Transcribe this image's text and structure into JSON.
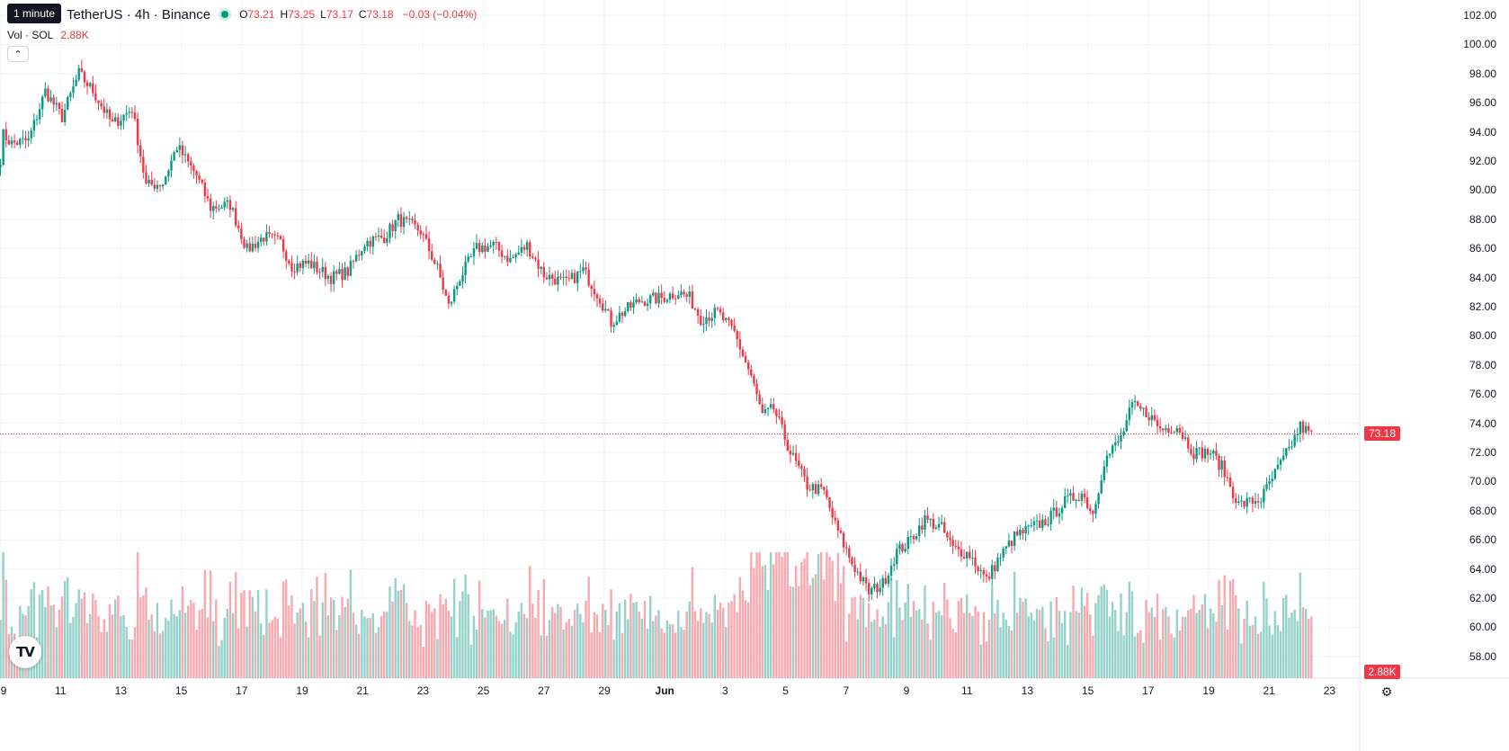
{
  "legend": {
    "tooltip": "1 minute",
    "symbol": "TetherUS · 4h · Binance",
    "open_key": "O",
    "open": "73.21",
    "high_key": "H",
    "high": "73.25",
    "low_key": "L",
    "low": "73.17",
    "close_key": "C",
    "close": "73.18",
    "change": "−0.03 (−0.04%)"
  },
  "volume": {
    "label": "Vol · SOL",
    "value": "2.88K"
  },
  "collapse_icon": "chevron-up-icon",
  "logo": "TV",
  "last_price_tag": "73.18",
  "last_volume_tag": "2.88K",
  "colors": {
    "up": "#089981",
    "down": "#f23645",
    "up_vol": "#94d1c8",
    "down_vol": "#f7a9af",
    "grid": "#f0f3fa"
  },
  "chart_data": {
    "type": "candlestick",
    "price_axis": {
      "ticks": [
        "102.00",
        "100.00",
        "98.00",
        "96.00",
        "94.00",
        "92.00",
        "90.00",
        "88.00",
        "86.00",
        "84.00",
        "82.00",
        "80.00",
        "78.00",
        "76.00",
        "74.00",
        "72.00",
        "70.00",
        "68.00",
        "66.00",
        "64.00",
        "62.00",
        "60.00",
        "58.00"
      ],
      "range": [
        56.3,
        103
      ]
    },
    "time_axis": {
      "ticks": [
        "9",
        "11",
        "13",
        "15",
        "17",
        "19",
        "21",
        "23",
        "25",
        "27",
        "29",
        "Jun",
        "3",
        "5",
        "7",
        "9",
        "11",
        "13",
        "15",
        "17",
        "19",
        "21",
        "23"
      ]
    },
    "price_anchors": [
      [
        0,
        92.2
      ],
      [
        1,
        93.8
      ],
      [
        4,
        93.2
      ],
      [
        10,
        93.4
      ],
      [
        16,
        96.8
      ],
      [
        22,
        95.0
      ],
      [
        28,
        98.0
      ],
      [
        33,
        96.8
      ],
      [
        40,
        94.5
      ],
      [
        47,
        95.6
      ],
      [
        52,
        90.3
      ],
      [
        58,
        90.5
      ],
      [
        63,
        93.0
      ],
      [
        70,
        91.0
      ],
      [
        75,
        88.8
      ],
      [
        82,
        89.0
      ],
      [
        88,
        85.9
      ],
      [
        94,
        86.8
      ],
      [
        100,
        86.4
      ],
      [
        104,
        84.8
      ],
      [
        110,
        85.0
      ],
      [
        118,
        84.0
      ],
      [
        124,
        84.4
      ],
      [
        130,
        86.4
      ],
      [
        137,
        86.8
      ],
      [
        142,
        88.0
      ],
      [
        150,
        87.2
      ],
      [
        156,
        84.6
      ],
      [
        160,
        82.0
      ],
      [
        164,
        84.0
      ],
      [
        170,
        86.0
      ],
      [
        176,
        86.2
      ],
      [
        182,
        85.2
      ],
      [
        188,
        86.2
      ],
      [
        194,
        84.2
      ],
      [
        202,
        83.6
      ],
      [
        208,
        84.5
      ],
      [
        214,
        82.6
      ],
      [
        218,
        80.9
      ],
      [
        222,
        81.6
      ],
      [
        228,
        82.4
      ],
      [
        236,
        82.6
      ],
      [
        242,
        83.0
      ],
      [
        246,
        82.6
      ],
      [
        250,
        81.2
      ],
      [
        256,
        81.6
      ],
      [
        262,
        80.2
      ],
      [
        268,
        77.2
      ],
      [
        272,
        74.5
      ],
      [
        276,
        75.0
      ],
      [
        282,
        72.0
      ],
      [
        288,
        69.7
      ],
      [
        294,
        69.3
      ],
      [
        298,
        67.0
      ],
      [
        304,
        64.4
      ],
      [
        310,
        62.4
      ],
      [
        315,
        63.0
      ],
      [
        320,
        65.2
      ],
      [
        324,
        65.8
      ],
      [
        330,
        67.4
      ],
      [
        336,
        66.8
      ],
      [
        340,
        65.4
      ],
      [
        346,
        65.0
      ],
      [
        352,
        63.2
      ],
      [
        356,
        64.6
      ],
      [
        362,
        66.2
      ],
      [
        368,
        66.8
      ],
      [
        374,
        67.4
      ],
      [
        380,
        68.6
      ],
      [
        386,
        69.2
      ],
      [
        390,
        67.8
      ],
      [
        394,
        71.4
      ],
      [
        400,
        73.0
      ],
      [
        404,
        75.2
      ],
      [
        410,
        74.6
      ],
      [
        414,
        73.6
      ],
      [
        420,
        73.8
      ],
      [
        426,
        72.0
      ],
      [
        432,
        72.0
      ],
      [
        436,
        71.0
      ],
      [
        442,
        68.4
      ],
      [
        450,
        68.8
      ],
      [
        454,
        70.2
      ],
      [
        460,
        72.2
      ],
      [
        464,
        73.8
      ],
      [
        468,
        73.2
      ]
    ],
    "volume_scale_max": 5.0
  }
}
